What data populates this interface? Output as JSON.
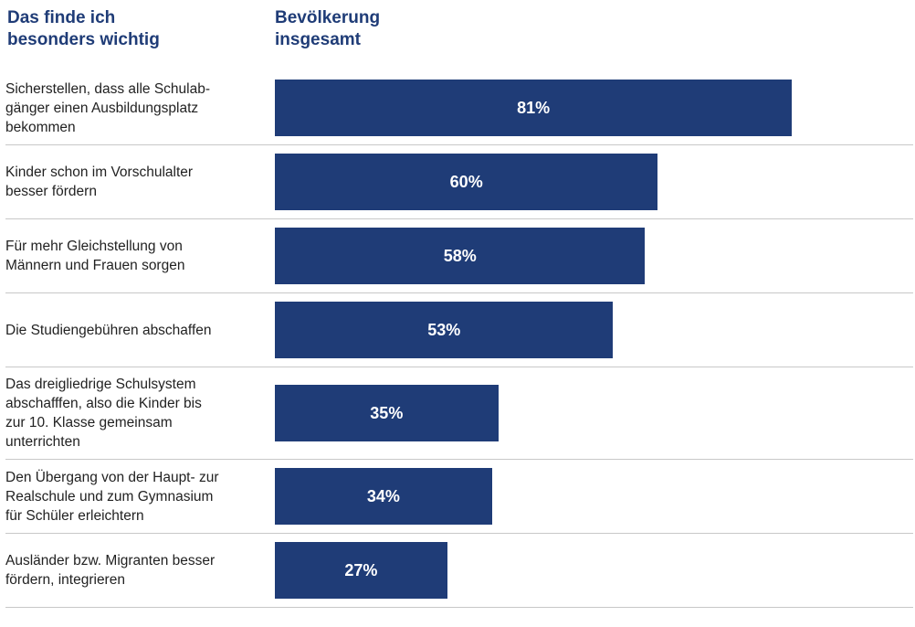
{
  "chart_data": {
    "type": "bar",
    "orientation": "horizontal",
    "title": [
      "Das finde ich",
      "besonders wichtig"
    ],
    "series_title": [
      "Bevölkerung",
      "insgesamt"
    ],
    "categories": [
      [
        "Sicherstellen, dass alle Schulab-",
        "gänger einen Ausbildungsplatz",
        "bekommen"
      ],
      [
        "Kinder schon im Vorschulalter",
        "besser fördern"
      ],
      [
        "Für mehr Gleichstellung von",
        "Männern und Frauen sorgen"
      ],
      [
        "Die Studiengebühren abschaffen"
      ],
      [
        "Das dreigliedrige Schulsystem",
        "abschafffen, also die Kinder bis",
        "zur 10. Klasse gemeinsam",
        "unterrichten"
      ],
      [
        "Den Übergang von der Haupt- zur",
        "Realschule und zum Gymnasium",
        "für Schüler erleichtern"
      ],
      [
        "Ausländer bzw. Migranten besser",
        "fördern, integrieren"
      ]
    ],
    "values": [
      81,
      60,
      58,
      53,
      35,
      34,
      27
    ],
    "value_labels": [
      "81%",
      "60%",
      "58%",
      "53%",
      "35%",
      "34%",
      "27%"
    ],
    "color": "#1f3c77",
    "xlim": [
      0,
      100
    ]
  }
}
